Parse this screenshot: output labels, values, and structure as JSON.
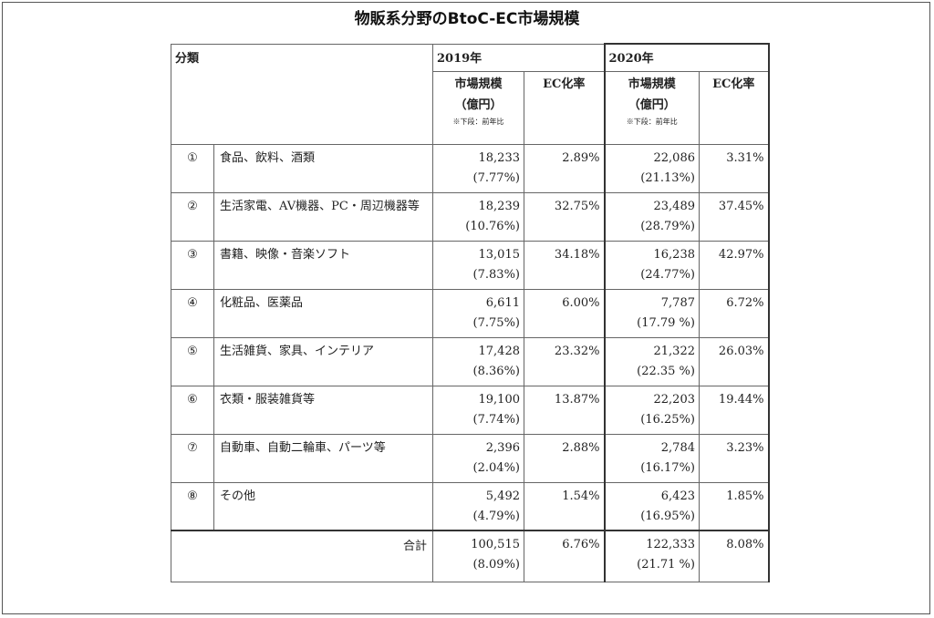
{
  "title": "物販系分野のBtoC-EC市場規模",
  "header": {
    "category": "分類",
    "year2019": "2019年",
    "year2020": "2020年",
    "market_size": "市場規模",
    "unit": "（億円）",
    "note": "※下段：前年比",
    "ec_rate": "EC化率"
  },
  "rows": [
    {
      "index": "①",
      "name": "食品、飲料、酒類",
      "v2019": "18,233",
      "g2019": "(7.77%)",
      "ec2019": "2.89%",
      "v2020": "22,086",
      "g2020": "(21.13%)",
      "ec2020": "3.31%"
    },
    {
      "index": "②",
      "name": "生活家電、AV機器、PC・周辺機器等",
      "v2019": "18,239",
      "g2019": "(10.76%)",
      "ec2019": "32.75%",
      "v2020": "23,489",
      "g2020": "(28.79%)",
      "ec2020": "37.45%"
    },
    {
      "index": "③",
      "name": "書籍、映像・音楽ソフト",
      "v2019": "13,015",
      "g2019": "(7.83%)",
      "ec2019": "34.18%",
      "v2020": "16,238",
      "g2020": "(24.77%)",
      "ec2020": "42.97%"
    },
    {
      "index": "④",
      "name": "化粧品、医薬品",
      "v2019": "6,611",
      "g2019": "(7.75%)",
      "ec2019": "6.00%",
      "v2020": "7,787",
      "g2020": "(17.79 %)",
      "ec2020": "6.72%"
    },
    {
      "index": "⑤",
      "name": "生活雑貨、家具、インテリア",
      "v2019": "17,428",
      "g2019": "(8.36%)",
      "ec2019": "23.32%",
      "v2020": "21,322",
      "g2020": "(22.35 %)",
      "ec2020": "26.03%"
    },
    {
      "index": "⑥",
      "name": "衣類・服装雑貨等",
      "v2019": "19,100",
      "g2019": "(7.74%)",
      "ec2019": "13.87%",
      "v2020": "22,203",
      "g2020": "(16.25%)",
      "ec2020": "19.44%"
    },
    {
      "index": "⑦",
      "name": "自動車、自動二輪車、パーツ等",
      "v2019": "2,396",
      "g2019": "(2.04%)",
      "ec2019": "2.88%",
      "v2020": "2,784",
      "g2020": "(16.17%)",
      "ec2020": "3.23%"
    },
    {
      "index": "⑧",
      "name": "その他",
      "v2019": "5,492",
      "g2019": "(4.79%)",
      "ec2019": "1.54%",
      "v2020": "6,423",
      "g2020": "(16.95%)",
      "ec2020": "1.85%"
    }
  ],
  "total": {
    "label": "合計",
    "v2019": "100,515",
    "g2019": "(8.09%)",
    "ec2019": "6.76%",
    "v2020": "122,333",
    "g2020": "(21.71 %)",
    "ec2020": "8.08%"
  }
}
